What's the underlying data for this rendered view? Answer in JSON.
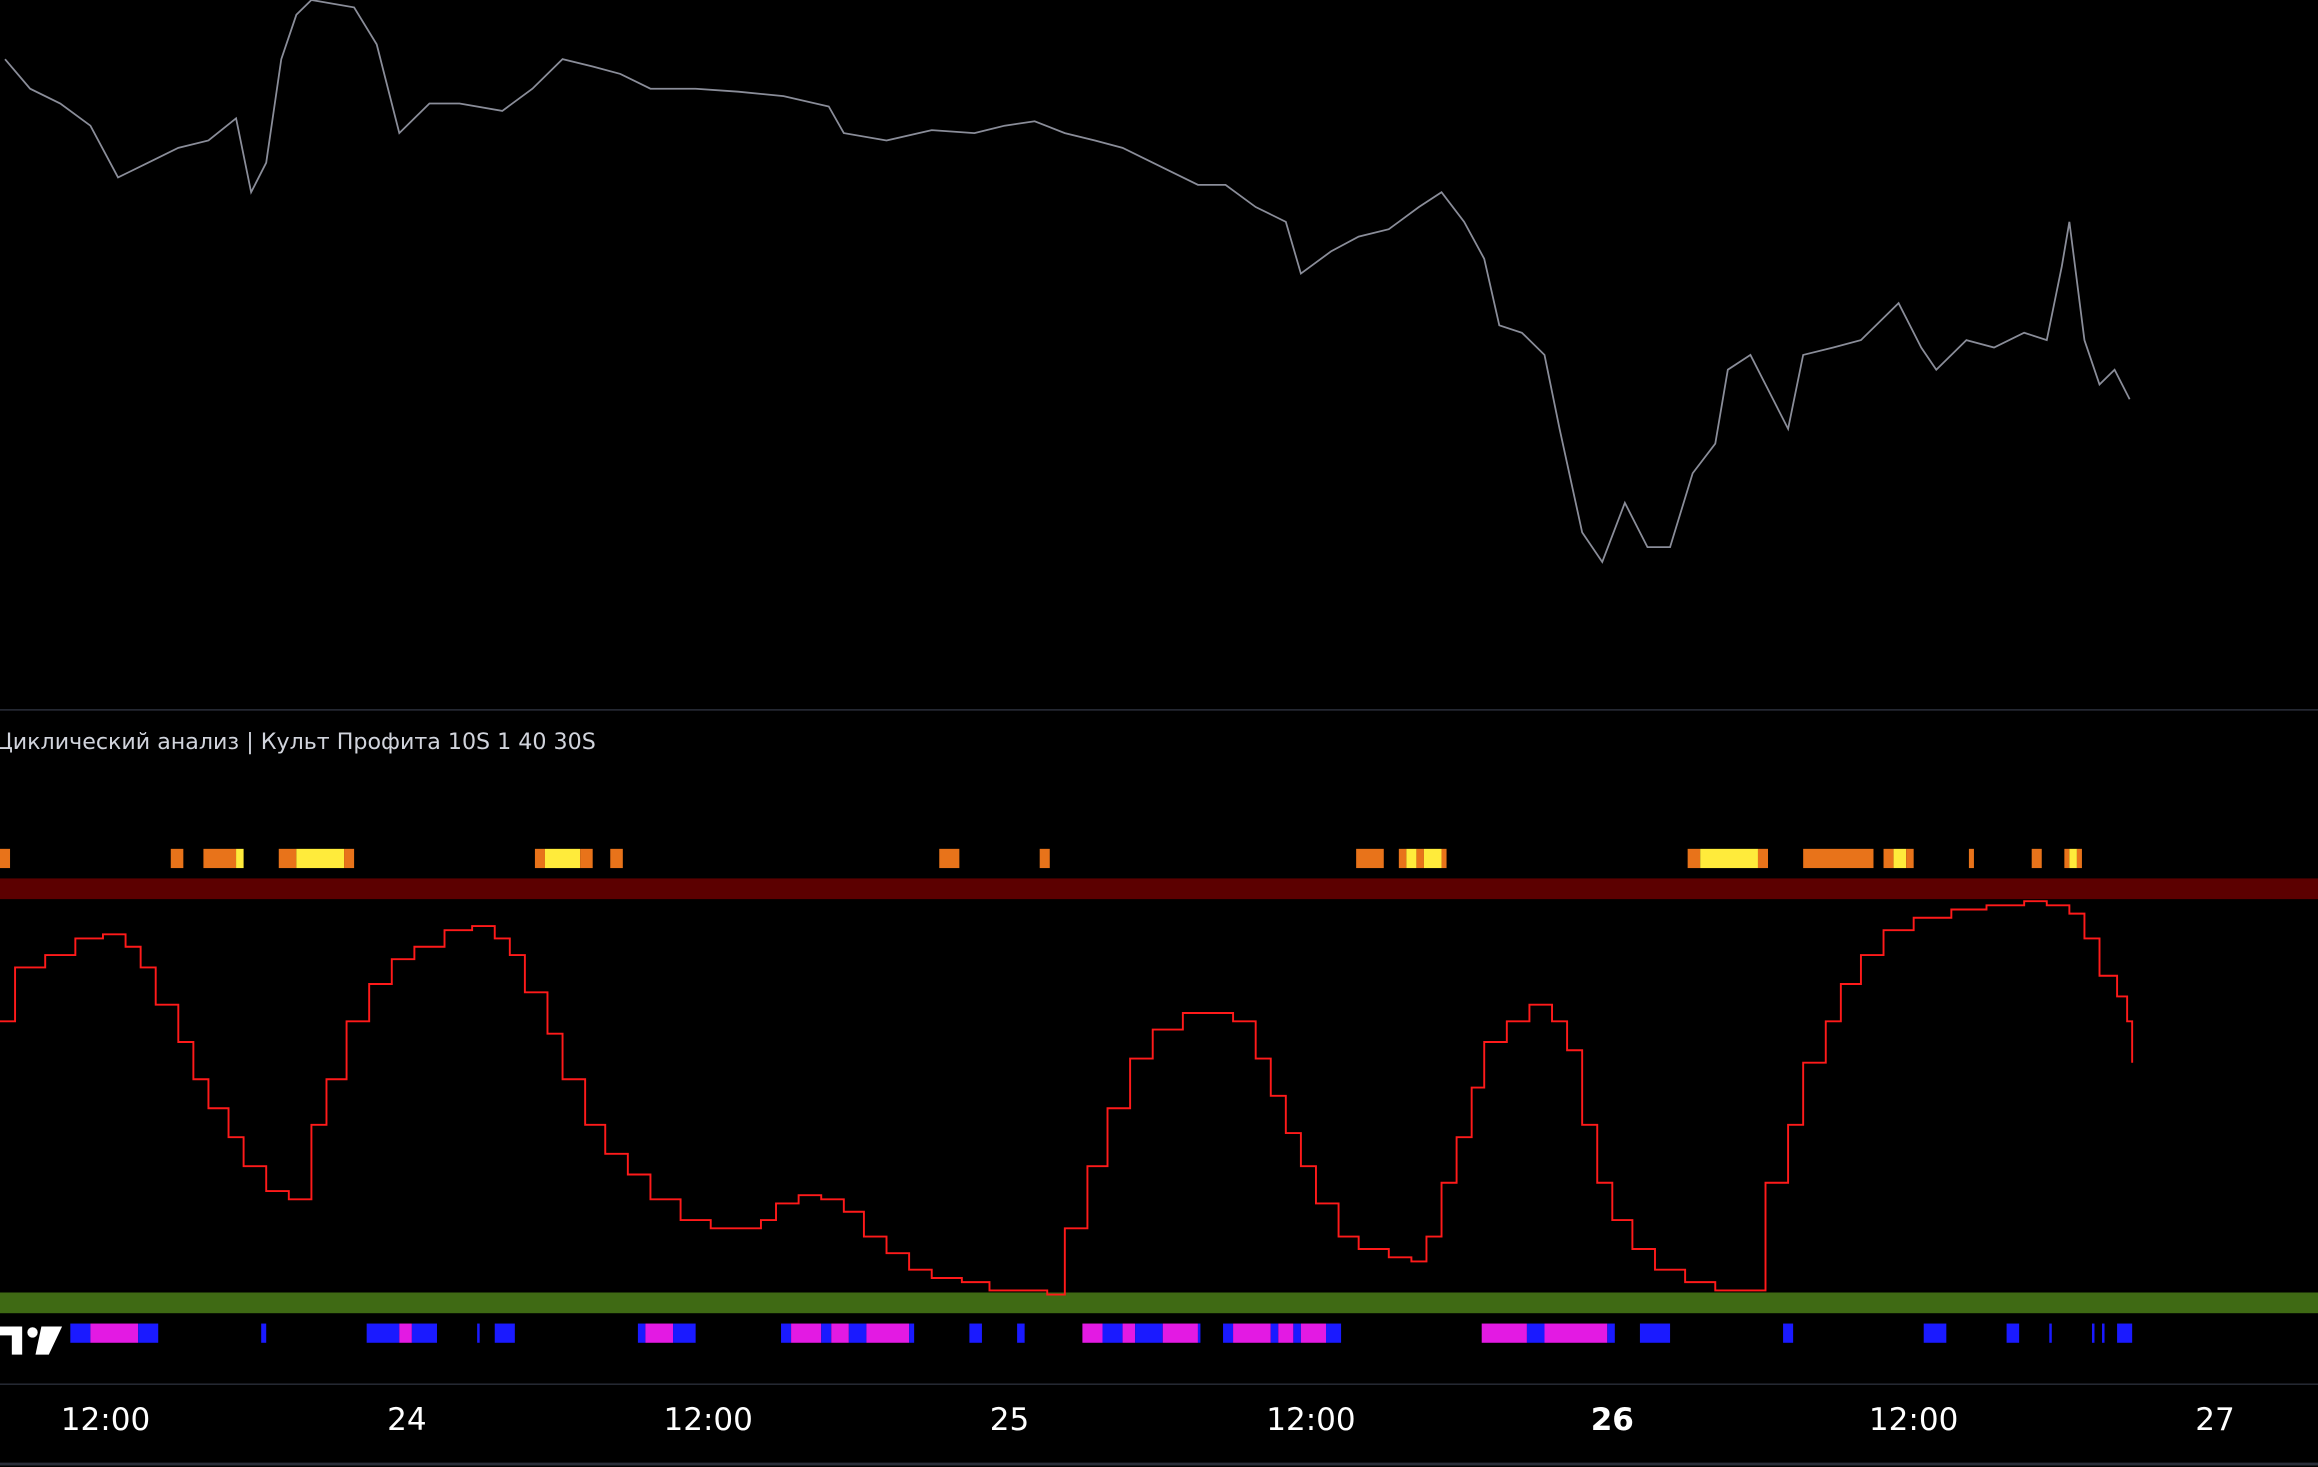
{
  "chart_data": [
    {
      "type": "line",
      "color": "#8a8d99",
      "xlim": [
        7.8,
        100.1
      ],
      "ylim": [
        0,
        480
      ],
      "x": [
        8.0,
        9.0,
        10.2,
        11.4,
        12.5,
        13.7,
        14.9,
        16.1,
        17.2,
        17.8,
        18.4,
        19.0,
        19.6,
        20.2,
        21.9,
        22.8,
        23.7,
        24.9,
        26.1,
        27.8,
        29.0,
        30.2,
        31.4,
        32.5,
        33.7,
        35.5,
        37.2,
        39.0,
        40.8,
        41.4,
        43.1,
        44.9,
        46.6,
        47.8,
        49.0,
        50.2,
        51.4,
        52.5,
        54.3,
        55.5,
        56.6,
        57.8,
        59.0,
        59.6,
        60.8,
        61.9,
        63.1,
        64.3,
        65.2,
        66.1,
        66.9,
        67.5,
        68.4,
        69.3,
        69.9,
        70.8,
        71.6,
        72.5,
        73.4,
        74.3,
        75.2,
        76.1,
        76.6,
        77.5,
        78.4,
        79.0,
        79.6,
        80.8,
        81.9,
        83.4,
        84.3,
        84.9,
        86.1,
        87.2,
        88.4,
        89.3,
        89.9,
        90.2,
        90.8,
        91.4,
        92.0,
        92.6
      ],
      "values": [
        440,
        420,
        410,
        395,
        360,
        370,
        380,
        385,
        400,
        350,
        370,
        440,
        470,
        480,
        475,
        450,
        390,
        410,
        410,
        405,
        420,
        440,
        435,
        430,
        420,
        420,
        418,
        415,
        408,
        390,
        385,
        392,
        390,
        395,
        398,
        390,
        385,
        380,
        365,
        355,
        355,
        340,
        330,
        295,
        310,
        320,
        325,
        340,
        350,
        330,
        305,
        260,
        255,
        240,
        190,
        120,
        100,
        140,
        110,
        110,
        160,
        180,
        230,
        240,
        210,
        190,
        240,
        245,
        250,
        275,
        245,
        230,
        250,
        245,
        255,
        250,
        300,
        330,
        250,
        220,
        230,
        210
      ]
    },
    {
      "type": "line",
      "step": true,
      "color": "#ff1a1a",
      "title": "Циклический анализ | Культ Профита 10S 1 40 30S",
      "xlim": [
        7.8,
        100.1
      ],
      "ylim": [
        0,
        100
      ],
      "upper_band": {
        "value": 100,
        "color": "#5c0000"
      },
      "lower_band": {
        "value": 0,
        "color": "#3f6a14"
      },
      "xticks": [
        {
          "value": 12,
          "label": "12:00"
        },
        24,
        {
          "value": 36,
          "label": "12:00"
        },
        {
          "value": 48,
          "label": "25"
        },
        {
          "value": 60,
          "label": "12:00"
        },
        {
          "value": 72,
          "label": "26"
        },
        {
          "value": 84,
          "label": "12:00"
        },
        {
          "value": 96,
          "label": "27"
        }
      ],
      "bold_xtick_values": [
        72
      ],
      "x": [
        7.8,
        8.4,
        9.6,
        10.8,
        11.9,
        12.8,
        13.4,
        14.0,
        14.9,
        15.5,
        16.1,
        16.9,
        17.5,
        18.4,
        19.3,
        20.2,
        20.8,
        21.6,
        22.5,
        23.4,
        24.3,
        25.5,
        26.6,
        27.5,
        28.1,
        28.7,
        29.6,
        30.2,
        31.1,
        31.9,
        32.8,
        33.7,
        34.9,
        36.1,
        37.2,
        38.1,
        38.7,
        39.6,
        40.5,
        41.4,
        42.2,
        43.1,
        44.0,
        44.9,
        46.1,
        47.2,
        48.4,
        49.5,
        50.2,
        51.1,
        51.9,
        52.8,
        53.7,
        54.9,
        56.1,
        56.9,
        57.8,
        58.4,
        59.0,
        59.6,
        60.2,
        61.1,
        61.9,
        63.1,
        64.0,
        64.6,
        65.2,
        65.8,
        66.4,
        66.9,
        67.8,
        68.7,
        69.6,
        70.2,
        70.8,
        71.4,
        72.0,
        72.8,
        73.7,
        74.9,
        76.1,
        77.4,
        78.1,
        79.0,
        79.6,
        80.5,
        81.1,
        81.9,
        82.8,
        84.0,
        85.5,
        86.9,
        88.4,
        89.3,
        90.2,
        90.8,
        91.4,
        92.1,
        92.5,
        92.7
      ],
      "values": [
        68,
        81,
        84,
        88,
        89,
        86,
        81,
        72,
        63,
        54,
        47,
        40,
        33,
        27,
        25,
        43,
        54,
        68,
        77,
        83,
        86,
        90,
        91,
        88,
        84,
        75,
        65,
        54,
        43,
        36,
        31,
        25,
        20,
        18,
        18,
        20,
        24,
        26,
        25,
        22,
        16,
        12,
        8,
        6,
        5,
        3,
        3,
        2,
        18,
        33,
        47,
        59,
        66,
        70,
        70,
        68,
        59,
        50,
        41,
        33,
        24,
        16,
        13,
        11,
        10,
        16,
        29,
        40,
        52,
        63,
        68,
        72,
        68,
        61,
        43,
        29,
        20,
        13,
        8,
        5,
        3,
        3,
        29,
        43,
        58,
        68,
        77,
        84,
        90,
        93,
        95,
        96,
        97,
        96,
        94,
        88,
        79,
        74,
        68,
        58
      ],
      "top_signals": [
        {
          "start": 7.8,
          "end": 8.2,
          "color": "#e8731a"
        },
        {
          "start": 14.6,
          "end": 15.1,
          "color": "#e8731a"
        },
        {
          "start": 15.9,
          "end": 17.2,
          "color": "#e8731a"
        },
        {
          "start": 17.2,
          "end": 17.5,
          "color": "#ffeb3b"
        },
        {
          "start": 18.9,
          "end": 19.6,
          "color": "#e8731a"
        },
        {
          "start": 19.6,
          "end": 21.5,
          "color": "#ffeb3b"
        },
        {
          "start": 21.5,
          "end": 21.9,
          "color": "#e8731a"
        },
        {
          "start": 29.1,
          "end": 29.5,
          "color": "#e8731a"
        },
        {
          "start": 29.5,
          "end": 30.9,
          "color": "#ffeb3b"
        },
        {
          "start": 30.9,
          "end": 31.4,
          "color": "#e8731a"
        },
        {
          "start": 32.1,
          "end": 32.6,
          "color": "#e8731a"
        },
        {
          "start": 45.2,
          "end": 46.0,
          "color": "#e8731a"
        },
        {
          "start": 49.2,
          "end": 49.6,
          "color": "#e8731a"
        },
        {
          "start": 61.8,
          "end": 62.9,
          "color": "#e8731a"
        },
        {
          "start": 63.5,
          "end": 63.8,
          "color": "#e8731a"
        },
        {
          "start": 63.8,
          "end": 64.2,
          "color": "#ffeb3b"
        },
        {
          "start": 64.2,
          "end": 64.5,
          "color": "#e8731a"
        },
        {
          "start": 64.5,
          "end": 65.2,
          "color": "#ffeb3b"
        },
        {
          "start": 65.2,
          "end": 65.4,
          "color": "#e8731a"
        },
        {
          "start": 75.0,
          "end": 75.5,
          "color": "#e8731a"
        },
        {
          "start": 75.5,
          "end": 77.8,
          "color": "#ffeb3b"
        },
        {
          "start": 77.8,
          "end": 78.2,
          "color": "#e8731a"
        },
        {
          "start": 79.6,
          "end": 82.4,
          "color": "#e8731a"
        },
        {
          "start": 82.8,
          "end": 83.2,
          "color": "#e8731a"
        },
        {
          "start": 83.2,
          "end": 83.7,
          "color": "#ffeb3b"
        },
        {
          "start": 83.7,
          "end": 84.0,
          "color": "#e8731a"
        },
        {
          "start": 86.2,
          "end": 86.4,
          "color": "#e8731a"
        },
        {
          "start": 88.7,
          "end": 89.1,
          "color": "#e8731a"
        },
        {
          "start": 90.0,
          "end": 90.2,
          "color": "#e8731a"
        },
        {
          "start": 90.2,
          "end": 90.5,
          "color": "#ffeb3b"
        },
        {
          "start": 90.5,
          "end": 90.7,
          "color": "#e8731a"
        }
      ],
      "bottom_signals": [
        {
          "start": 10.6,
          "end": 11.4,
          "color": "#1a1aff"
        },
        {
          "start": 11.4,
          "end": 13.3,
          "color": "#e31ae3"
        },
        {
          "start": 13.3,
          "end": 14.1,
          "color": "#1a1aff"
        },
        {
          "start": 18.2,
          "end": 18.4,
          "color": "#1a1aff"
        },
        {
          "start": 22.4,
          "end": 23.7,
          "color": "#1a1aff"
        },
        {
          "start": 23.7,
          "end": 24.2,
          "color": "#e31ae3"
        },
        {
          "start": 24.2,
          "end": 25.2,
          "color": "#1a1aff"
        },
        {
          "start": 26.8,
          "end": 26.9,
          "color": "#1a1aff"
        },
        {
          "start": 27.5,
          "end": 28.3,
          "color": "#1a1aff"
        },
        {
          "start": 33.2,
          "end": 33.5,
          "color": "#1a1aff"
        },
        {
          "start": 33.5,
          "end": 34.6,
          "color": "#e31ae3"
        },
        {
          "start": 34.6,
          "end": 35.5,
          "color": "#1a1aff"
        },
        {
          "start": 38.9,
          "end": 39.3,
          "color": "#1a1aff"
        },
        {
          "start": 39.3,
          "end": 40.5,
          "color": "#e31ae3"
        },
        {
          "start": 40.5,
          "end": 40.9,
          "color": "#1a1aff"
        },
        {
          "start": 40.9,
          "end": 41.6,
          "color": "#e31ae3"
        },
        {
          "start": 41.6,
          "end": 42.3,
          "color": "#1a1aff"
        },
        {
          "start": 42.3,
          "end": 44.0,
          "color": "#e31ae3"
        },
        {
          "start": 44.0,
          "end": 44.2,
          "color": "#1a1aff"
        },
        {
          "start": 46.4,
          "end": 46.9,
          "color": "#1a1aff"
        },
        {
          "start": 48.3,
          "end": 48.6,
          "color": "#1a1aff"
        },
        {
          "start": 50.9,
          "end": 51.7,
          "color": "#e31ae3"
        },
        {
          "start": 51.7,
          "end": 52.5,
          "color": "#1a1aff"
        },
        {
          "start": 52.5,
          "end": 53.0,
          "color": "#e31ae3"
        },
        {
          "start": 53.0,
          "end": 54.1,
          "color": "#1a1aff"
        },
        {
          "start": 54.1,
          "end": 55.5,
          "color": "#e31ae3"
        },
        {
          "start": 55.5,
          "end": 55.6,
          "color": "#1a1aff"
        },
        {
          "start": 56.5,
          "end": 56.9,
          "color": "#1a1aff"
        },
        {
          "start": 56.9,
          "end": 58.4,
          "color": "#e31ae3"
        },
        {
          "start": 58.4,
          "end": 58.7,
          "color": "#1a1aff"
        },
        {
          "start": 58.7,
          "end": 59.3,
          "color": "#e31ae3"
        },
        {
          "start": 59.3,
          "end": 59.6,
          "color": "#1a1aff"
        },
        {
          "start": 59.6,
          "end": 60.6,
          "color": "#e31ae3"
        },
        {
          "start": 60.6,
          "end": 61.2,
          "color": "#1a1aff"
        },
        {
          "start": 66.8,
          "end": 68.6,
          "color": "#e31ae3"
        },
        {
          "start": 68.6,
          "end": 69.3,
          "color": "#1a1aff"
        },
        {
          "start": 69.3,
          "end": 71.8,
          "color": "#e31ae3"
        },
        {
          "start": 71.8,
          "end": 72.1,
          "color": "#1a1aff"
        },
        {
          "start": 73.1,
          "end": 74.3,
          "color": "#1a1aff"
        },
        {
          "start": 78.8,
          "end": 79.2,
          "color": "#1a1aff"
        },
        {
          "start": 84.4,
          "end": 85.3,
          "color": "#1a1aff"
        },
        {
          "start": 87.7,
          "end": 88.2,
          "color": "#1a1aff"
        },
        {
          "start": 89.4,
          "end": 89.5,
          "color": "#1a1aff"
        },
        {
          "start": 91.1,
          "end": 91.2,
          "color": "#1a1aff"
        },
        {
          "start": 91.5,
          "end": 91.6,
          "color": "#1a1aff"
        },
        {
          "start": 92.1,
          "end": 92.7,
          "color": "#1a1aff"
        }
      ]
    }
  ]
}
